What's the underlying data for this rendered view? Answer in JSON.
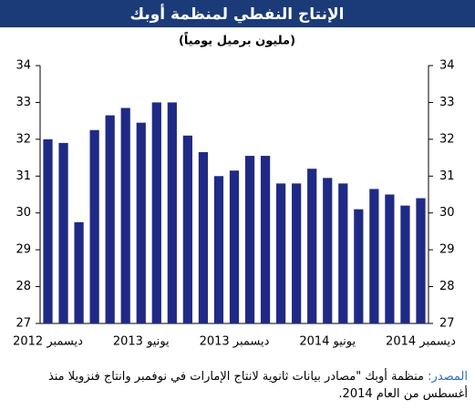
{
  "chart_data": {
    "type": "bar",
    "title": "الإنتاج النفطي لمنظمة أوبك",
    "subtitle": "(مليون برميل يومياً)",
    "categories": [
      "ديسمبر 2012",
      null,
      null,
      null,
      null,
      null,
      "يونيو 2013",
      null,
      null,
      null,
      null,
      null,
      "ديسمبر 2013",
      null,
      null,
      null,
      null,
      null,
      "يونيو 2014",
      null,
      null,
      null,
      null,
      null,
      "ديسمبر 2014"
    ],
    "values": [
      32.0,
      31.9,
      29.75,
      32.25,
      32.65,
      32.85,
      32.45,
      33.0,
      33.0,
      32.1,
      31.65,
      31.0,
      31.15,
      31.55,
      31.55,
      30.8,
      30.8,
      31.2,
      30.95,
      30.8,
      30.1,
      30.65,
      30.5,
      30.2,
      30.4
    ],
    "color": "#1f2a86",
    "ylim": [
      27,
      34
    ],
    "yticks": [
      27,
      28,
      29,
      30,
      31,
      32,
      33,
      34
    ],
    "y2lim": [
      27,
      34
    ],
    "y2ticks": [
      27,
      28,
      29,
      30,
      31,
      32,
      33,
      34
    ],
    "grid": false,
    "source_label": "المصدر:",
    "source": "منظمة أوبك \"مصادر بيانات ثانوية لانتاج الإمارات في نوفمبر وانتاج فنزويلا منذ أغسطس من العام 2014."
  }
}
